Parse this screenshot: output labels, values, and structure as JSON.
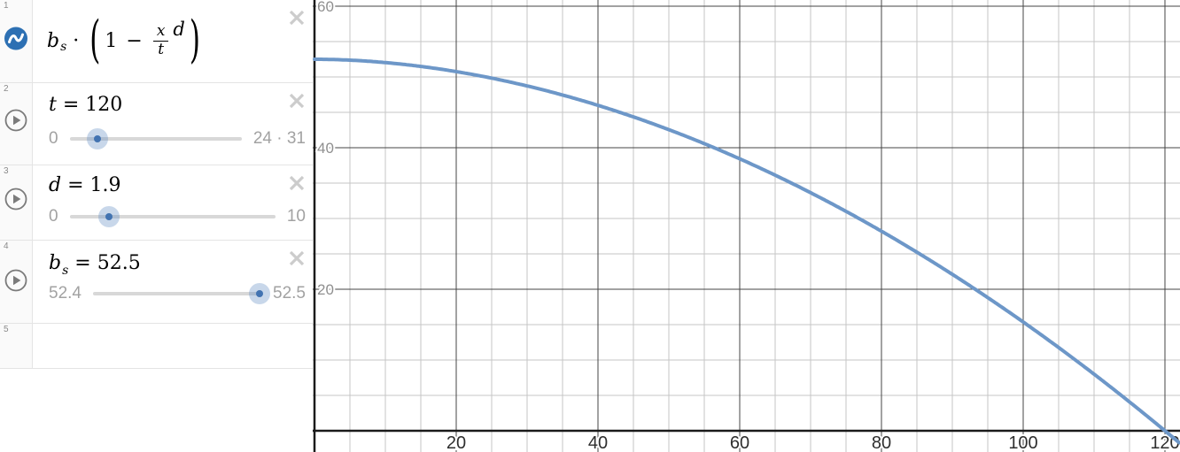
{
  "app": {
    "name": "Desmos graphing calculator"
  },
  "icons": {
    "desmos_wave": "sine-wave on blue disc",
    "play": "▶",
    "close": "✕",
    "colors": {
      "desmos_blue": "#2d70b3",
      "slider_dot": "#4273b1",
      "slider_halo": "rgba(96,139,195,0.35)",
      "close_gray": "#cccccc",
      "play_gray": "#7b7b7b"
    }
  },
  "expressions_panel": {
    "rows": [
      {
        "number": "1"
      },
      {
        "number": "2"
      },
      {
        "number": "3"
      },
      {
        "number": "4"
      },
      {
        "number": "5"
      }
    ],
    "expr1": {
      "base": "b",
      "subscript": "s",
      "dot": "·",
      "open_paren": "(",
      "one": "1",
      "minus": "−",
      "frac_numerator": "x",
      "frac_denominator": "t",
      "exponent": "d",
      "close_paren": ")"
    },
    "slider_t": {
      "variable": "t",
      "equals": "=",
      "value": "120",
      "min_label": "0",
      "max_label": "24 · 31",
      "fraction": 0.161
    },
    "slider_d": {
      "variable": "d",
      "equals": "=",
      "value": "1.9",
      "min_label": "0",
      "max_label": "10",
      "fraction": 0.19
    },
    "slider_b": {
      "base": "b",
      "subscript": "s",
      "equals": "=",
      "value": "52.5",
      "min_label": "52.4",
      "max_label": "52.5",
      "fraction": 0.989
    }
  },
  "chart_data": {
    "type": "line",
    "title": "",
    "xlabel": "",
    "ylabel": "",
    "xlim": [
      -0.25,
      122.125
    ],
    "ylim": [
      -3.0,
      60.875
    ],
    "x_ticks": [
      20,
      40,
      60,
      80,
      100,
      120
    ],
    "y_ticks": [
      20,
      40,
      60
    ],
    "grid": {
      "on": true,
      "minor_step": 5,
      "major_step": 20
    },
    "colors": {
      "axis": "#1a1a1a",
      "major_grid": "#444444",
      "minor_grid": "#c6c6c6",
      "x_tick_label": "#2e2e2e",
      "y_tick_label": "#8f8f8f"
    },
    "legend": "none",
    "series": [
      {
        "name": "y = b_s·(1 − (x/t)^d)",
        "color": "#6d97c8",
        "stroke_width": 4,
        "parameters": {
          "b_s": 52.5,
          "t": 120,
          "d": 1.9
        },
        "domain": [
          0,
          122.125
        ],
        "samples_x": [
          0,
          5,
          10,
          15,
          20,
          25,
          30,
          35,
          40,
          45,
          50,
          55,
          60,
          65,
          70,
          75,
          80,
          85,
          90,
          95,
          100,
          105,
          110,
          115,
          120,
          122.1
        ],
        "samples_y": [
          52.5,
          52.37,
          52.03,
          51.49,
          50.76,
          49.83,
          48.73,
          47.45,
          45.99,
          44.36,
          42.55,
          40.57,
          38.43,
          36.12,
          33.65,
          31.01,
          28.21,
          25.24,
          22.11,
          18.82,
          15.37,
          11.76,
          8.0,
          4.08,
          0.0,
          -1.76
        ]
      }
    ]
  }
}
